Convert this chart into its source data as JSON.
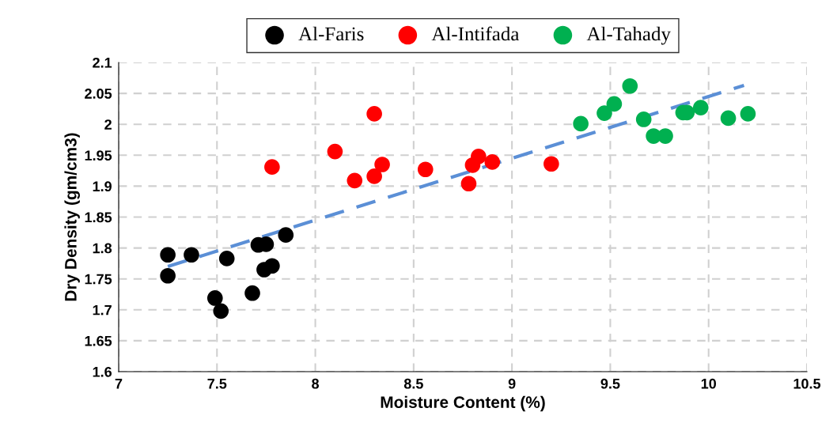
{
  "chart_data": {
    "type": "scatter",
    "xlabel": "Moisture Content (%)",
    "ylabel": "Dry Density (gm/cm3)",
    "xlim": [
      7,
      10.5
    ],
    "xticks": [
      7,
      7.5,
      8,
      8.5,
      9,
      9.5,
      10,
      10.5
    ],
    "ylim": [
      1.6,
      2.1
    ],
    "yticks": [
      1.6,
      1.65,
      1.7,
      1.75,
      1.8,
      1.85,
      1.9,
      1.95,
      2,
      2.05,
      2.1
    ],
    "grid": true,
    "legend": "top",
    "marker": "circle",
    "series": [
      {
        "name": "Al-Faris",
        "color": "#000000",
        "x": [
          7.25,
          7.25,
          7.37,
          7.55,
          7.49,
          7.52,
          7.68,
          7.71,
          7.75,
          7.74,
          7.78,
          7.85
        ],
        "values": [
          1.789,
          1.755,
          1.789,
          1.783,
          1.719,
          1.698,
          1.727,
          1.805,
          1.806,
          1.765,
          1.771,
          1.821
        ]
      },
      {
        "name": "Al-Intifada",
        "color": "#ff0000",
        "x": [
          7.78,
          8.1,
          8.2,
          8.3,
          8.3,
          8.34,
          8.56,
          8.78,
          8.8,
          8.83,
          8.9,
          9.2
        ],
        "values": [
          1.931,
          1.956,
          1.909,
          1.916,
          2.017,
          1.935,
          1.927,
          1.904,
          1.934,
          1.948,
          1.939,
          1.936
        ]
      },
      {
        "name": "Al-Tahady",
        "color": "#00b050",
        "x": [
          9.35,
          9.47,
          9.52,
          9.6,
          9.67,
          9.72,
          9.78,
          9.87,
          9.89,
          9.96,
          10.1,
          10.2
        ],
        "values": [
          2.001,
          2.018,
          2.033,
          2.062,
          2.008,
          1.981,
          1.981,
          2.019,
          2.019,
          2.027,
          2.01,
          2.017
        ]
      },
      {
        "type": "line",
        "line_style": "dashed",
        "marker": "none",
        "color": "#5b8fd6",
        "x": [
          7.25,
          10.18
        ],
        "values": [
          1.77,
          2.063
        ]
      }
    ]
  }
}
